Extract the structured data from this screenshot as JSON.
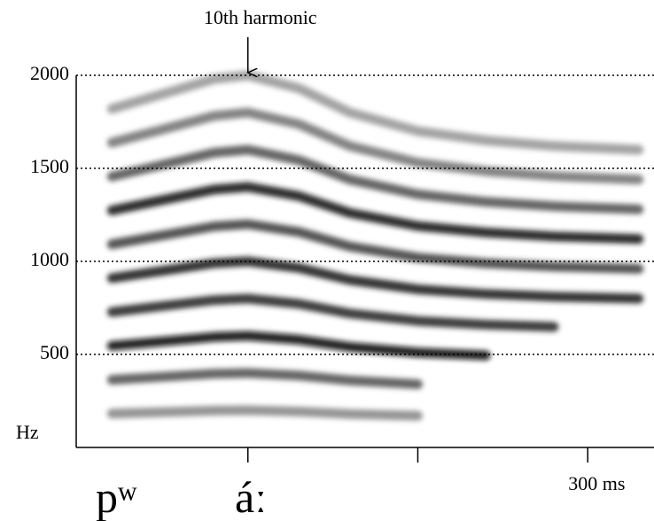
{
  "chart_data": {
    "type": "spectrogram",
    "y_label": "Hz",
    "xlim": [
      0,
      339
    ],
    "ylim": [
      0,
      2000
    ],
    "xticks": [
      {
        "value": 100
      },
      {
        "value": 200
      },
      {
        "value": 300,
        "label": "300 ms"
      }
    ],
    "yticks": [
      500,
      1000,
      1500,
      2000
    ],
    "grid": true,
    "annotation": {
      "text": "10th harmonic",
      "x": 100,
      "y": 2000
    },
    "segments": [
      "pʷ",
      "áː"
    ],
    "x": [
      20,
      50,
      80,
      100,
      130,
      160,
      200,
      240,
      280,
      330
    ],
    "series": [
      {
        "color": "#8a8a8a",
        "values": [
          182,
          190,
          198,
          200,
          193,
          180,
          170,
          null,
          null,
          null
        ]
      },
      {
        "color": "#555555",
        "values": [
          364,
          380,
          396,
          400,
          386,
          360,
          340,
          null,
          null,
          null
        ]
      },
      {
        "color": "#111111",
        "values": [
          546,
          570,
          594,
          600,
          579,
          540,
          510,
          495,
          null,
          null
        ]
      },
      {
        "color": "#2a2a2a",
        "values": [
          728,
          760,
          792,
          800,
          772,
          720,
          680,
          660,
          648,
          null
        ]
      },
      {
        "color": "#1e1e1e",
        "values": [
          910,
          950,
          990,
          1000,
          965,
          900,
          850,
          825,
          810,
          800
        ]
      },
      {
        "color": "#444444",
        "values": [
          1092,
          1140,
          1188,
          1200,
          1158,
          1080,
          1020,
          990,
          972,
          960
        ]
      },
      {
        "color": "#1a1a1a",
        "values": [
          1274,
          1330,
          1386,
          1400,
          1351,
          1260,
          1190,
          1155,
          1134,
          1120
        ]
      },
      {
        "color": "#555555",
        "values": [
          1456,
          1520,
          1584,
          1600,
          1544,
          1440,
          1360,
          1320,
          1296,
          1280
        ]
      },
      {
        "color": "#777777",
        "values": [
          1638,
          1710,
          1782,
          1800,
          1737,
          1620,
          1530,
          1485,
          1458,
          1440
        ]
      },
      {
        "color": "#999999",
        "values": [
          1820,
          1900,
          1980,
          2000,
          1930,
          1800,
          1700,
          1650,
          1620,
          1600
        ]
      }
    ]
  }
}
